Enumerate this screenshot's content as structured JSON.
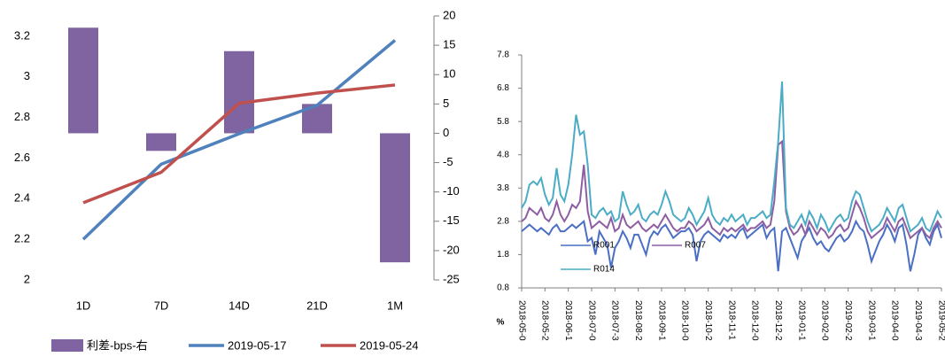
{
  "chart_data": [
    {
      "type": "combo",
      "categories": [
        "1D",
        "7D",
        "14D",
        "21D",
        "1M"
      ],
      "series": [
        {
          "name": "利差-bps-右",
          "type": "bar",
          "axis": "y2",
          "color": "#8064a2",
          "values": [
            18,
            -3,
            14,
            5,
            -22
          ]
        },
        {
          "name": "2019-05-17",
          "type": "line",
          "color": "#4f81bd",
          "values": [
            2.2,
            2.57,
            2.72,
            2.86,
            3.18
          ]
        },
        {
          "name": "2019-05-24",
          "type": "line",
          "color": "#c0504d",
          "values": [
            2.38,
            2.53,
            2.87,
            2.92,
            2.96
          ]
        }
      ],
      "ylim": [
        2,
        3.3
      ],
      "yticks": [
        2,
        2.2,
        2.4,
        2.6,
        2.8,
        3,
        3.2
      ],
      "y2lim": [
        -25,
        20
      ],
      "y2ticks": [
        -25,
        -20,
        -15,
        -10,
        -5,
        0,
        5,
        10,
        15,
        20
      ],
      "legend": "bottom"
    },
    {
      "type": "line",
      "y_label": "%",
      "categories": [
        "2018-05-0",
        null,
        null,
        null,
        null,
        null,
        "2018-05-2",
        null,
        null,
        null,
        null,
        null,
        "2018-06-1",
        null,
        null,
        null,
        null,
        null,
        "2018-07-0",
        null,
        null,
        null,
        null,
        null,
        "2018-07-3",
        null,
        null,
        null,
        null,
        null,
        "2018-08-2",
        null,
        null,
        null,
        null,
        null,
        "2018-09-1",
        null,
        null,
        null,
        null,
        null,
        "2018-10-0",
        null,
        null,
        null,
        null,
        null,
        "2018-10-2",
        null,
        null,
        null,
        null,
        null,
        "2018-11-1",
        null,
        null,
        null,
        null,
        null,
        "2018-12-0",
        null,
        null,
        null,
        null,
        null,
        "2018-12-2",
        null,
        null,
        null,
        null,
        null,
        "2019-01-1",
        null,
        null,
        null,
        null,
        null,
        "2019-02-0",
        null,
        null,
        null,
        null,
        null,
        "2019-02-2",
        null,
        null,
        null,
        null,
        null,
        "2019-03-1",
        null,
        null,
        null,
        null,
        null,
        "2019-04-0",
        null,
        null,
        null,
        null,
        null,
        "2019-04-3",
        null,
        null,
        null,
        null,
        null,
        "2019-05-2"
      ],
      "series": [
        {
          "name": "R001",
          "color": "#4a6fc4",
          "values": [
            2.5,
            2.6,
            2.7,
            2.6,
            2.5,
            2.6,
            2.5,
            2.4,
            2.6,
            2.7,
            2.5,
            2.5,
            2.6,
            2.7,
            2.6,
            2.7,
            2.8,
            2.2,
            2.3,
            1.8,
            2.5,
            2.3,
            2.1,
            1.4,
            2.0,
            2.2,
            2.5,
            2.3,
            2.0,
            2.4,
            2.4,
            2.1,
            1.8,
            2.3,
            2.5,
            2.4,
            2.6,
            2.7,
            2.5,
            2.3,
            2.4,
            2.5,
            2.5,
            2.6,
            2.4,
            1.6,
            2.2,
            2.4,
            2.5,
            2.4,
            2.3,
            2.2,
            2.4,
            2.3,
            2.4,
            2.3,
            2.5,
            2.6,
            2.3,
            2.4,
            2.5,
            2.6,
            2.7,
            2.3,
            2.5,
            2.6,
            1.3,
            2.5,
            2.6,
            2.3,
            2.0,
            1.7,
            2.2,
            2.4,
            2.6,
            2.3,
            2.1,
            2.2,
            2.0,
            1.9,
            2.1,
            2.3,
            2.4,
            2.2,
            2.3,
            2.5,
            2.8,
            2.6,
            2.5,
            2.1,
            1.6,
            1.9,
            2.2,
            2.4,
            2.7,
            2.5,
            2.2,
            2.6,
            2.7,
            2.1,
            1.3,
            1.8,
            2.4,
            2.6,
            2.3,
            2.1,
            2.5,
            2.7,
            2.3
          ]
        },
        {
          "name": "R007",
          "color": "#8e5ea2",
          "values": [
            2.8,
            2.9,
            3.2,
            3.1,
            3.0,
            3.2,
            2.9,
            2.8,
            3.0,
            3.4,
            3.0,
            2.8,
            3.0,
            3.3,
            3.2,
            3.4,
            4.5,
            3.1,
            2.6,
            2.7,
            2.8,
            2.7,
            2.6,
            2.9,
            2.5,
            2.6,
            3.0,
            2.7,
            2.6,
            2.7,
            2.8,
            2.6,
            2.5,
            2.6,
            2.7,
            2.6,
            2.8,
            3.0,
            2.8,
            2.6,
            2.5,
            2.6,
            2.6,
            2.8,
            2.7,
            2.5,
            2.6,
            2.7,
            2.9,
            2.6,
            2.5,
            2.4,
            2.6,
            2.5,
            2.6,
            2.5,
            2.6,
            2.7,
            2.5,
            2.6,
            2.6,
            2.7,
            2.8,
            2.6,
            2.7,
            3.4,
            5.1,
            5.2,
            3.1,
            2.6,
            2.4,
            2.5,
            2.7,
            2.4,
            2.8,
            2.6,
            2.4,
            2.6,
            2.5,
            2.3,
            2.4,
            2.6,
            2.7,
            2.5,
            2.6,
            3.0,
            3.4,
            3.2,
            2.9,
            2.5,
            2.3,
            2.4,
            2.5,
            2.6,
            2.9,
            2.7,
            2.5,
            2.8,
            2.9,
            2.6,
            2.3,
            2.4,
            2.5,
            2.6,
            2.4,
            2.3,
            2.6,
            2.8,
            2.6
          ]
        },
        {
          "name": "R014",
          "color": "#4bacc6",
          "values": [
            3.2,
            3.4,
            3.9,
            4.0,
            3.9,
            4.1,
            3.6,
            3.3,
            3.5,
            4.4,
            3.6,
            3.4,
            3.9,
            4.8,
            6.0,
            5.4,
            5.5,
            4.5,
            3.0,
            2.9,
            3.1,
            3.2,
            3.0,
            3.1,
            2.8,
            2.9,
            3.7,
            3.3,
            3.0,
            3.1,
            3.3,
            2.9,
            2.8,
            3.0,
            3.1,
            3.0,
            3.3,
            3.7,
            3.4,
            3.0,
            2.9,
            2.8,
            2.9,
            3.2,
            3.0,
            2.7,
            2.9,
            3.1,
            3.5,
            3.0,
            2.8,
            2.7,
            2.9,
            2.8,
            3.0,
            2.8,
            2.9,
            3.0,
            2.7,
            2.9,
            2.9,
            3.0,
            3.1,
            2.9,
            3.0,
            4.0,
            5.2,
            7.0,
            3.2,
            2.7,
            2.6,
            2.8,
            3.0,
            2.7,
            3.1,
            2.9,
            2.6,
            3.0,
            2.8,
            2.5,
            2.7,
            2.9,
            3.0,
            2.8,
            2.9,
            3.4,
            3.7,
            3.6,
            3.2,
            2.8,
            2.5,
            2.6,
            2.7,
            2.9,
            3.2,
            3.0,
            2.8,
            3.2,
            3.3,
            2.9,
            2.5,
            2.6,
            2.7,
            2.9,
            2.6,
            2.5,
            2.8,
            3.1,
            2.9
          ]
        }
      ],
      "ylim": [
        0.8,
        7.8
      ],
      "yticks": [
        0.8,
        1.8,
        2.8,
        3.8,
        4.8,
        5.8,
        6.8,
        7.8
      ],
      "legend": "lower-left"
    }
  ]
}
